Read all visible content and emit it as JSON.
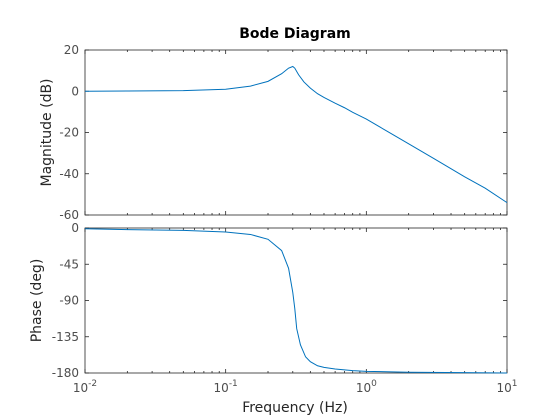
{
  "chart_data": {
    "type": "line",
    "title": "Bode Diagram",
    "xlabel": "Frequency  (Hz)",
    "x_scale": "log",
    "xlim": [
      0.01,
      10
    ],
    "x_ticks": [
      {
        "value": 0.01,
        "base": "10",
        "exp": "-2"
      },
      {
        "value": 0.1,
        "base": "10",
        "exp": "-1"
      },
      {
        "value": 1,
        "base": "10",
        "exp": "0"
      },
      {
        "value": 10,
        "base": "10",
        "exp": "1"
      }
    ],
    "grid": false,
    "line_color": "#0072bd",
    "panels": [
      {
        "name": "magnitude",
        "ylabel": "Magnitude (dB)",
        "ylim": [
          -60,
          20
        ],
        "y_ticks": [
          20,
          0,
          -20,
          -40,
          -60
        ],
        "y_tick_labels": [
          "20",
          "0",
          "-20",
          "-40",
          "-60"
        ],
        "series": [
          {
            "x": [
              0.01,
              0.02,
              0.05,
              0.1,
              0.15,
              0.2,
              0.25,
              0.28,
              0.3,
              0.31,
              0.33,
              0.36,
              0.4,
              0.45,
              0.5,
              0.6,
              0.7,
              0.8,
              1.0,
              1.5,
              2,
              3,
              5,
              7,
              10
            ],
            "y": [
              0.0,
              0.1,
              0.3,
              1.0,
              2.5,
              4.8,
              8.5,
              11.2,
              12.0,
              11.2,
              8.0,
              4.5,
              1.5,
              -1.2,
              -3.0,
              -5.8,
              -8.0,
              -10.2,
              -13.5,
              -20.5,
              -25.5,
              -32.5,
              -41.5,
              -47.0,
              -54.0
            ]
          }
        ]
      },
      {
        "name": "phase",
        "ylabel": "Phase (deg)",
        "ylim": [
          -180,
          0
        ],
        "y_ticks": [
          0,
          -45,
          -90,
          -135,
          -180
        ],
        "y_tick_labels": [
          "0",
          "-45",
          "-90",
          "-135",
          "-180"
        ],
        "series": [
          {
            "x": [
              0.01,
              0.02,
              0.05,
              0.1,
              0.15,
              0.2,
              0.25,
              0.28,
              0.3,
              0.31,
              0.32,
              0.34,
              0.37,
              0.4,
              0.45,
              0.5,
              0.6,
              0.8,
              1.0,
              2,
              5,
              10
            ],
            "y": [
              -1,
              -2,
              -3,
              -5,
              -8,
              -14,
              -28,
              -50,
              -80,
              -100,
              -125,
              -145,
              -160,
              -166,
              -171,
              -173,
              -175,
              -177,
              -178,
              -179,
              -179.5,
              -180
            ]
          }
        ]
      }
    ]
  }
}
